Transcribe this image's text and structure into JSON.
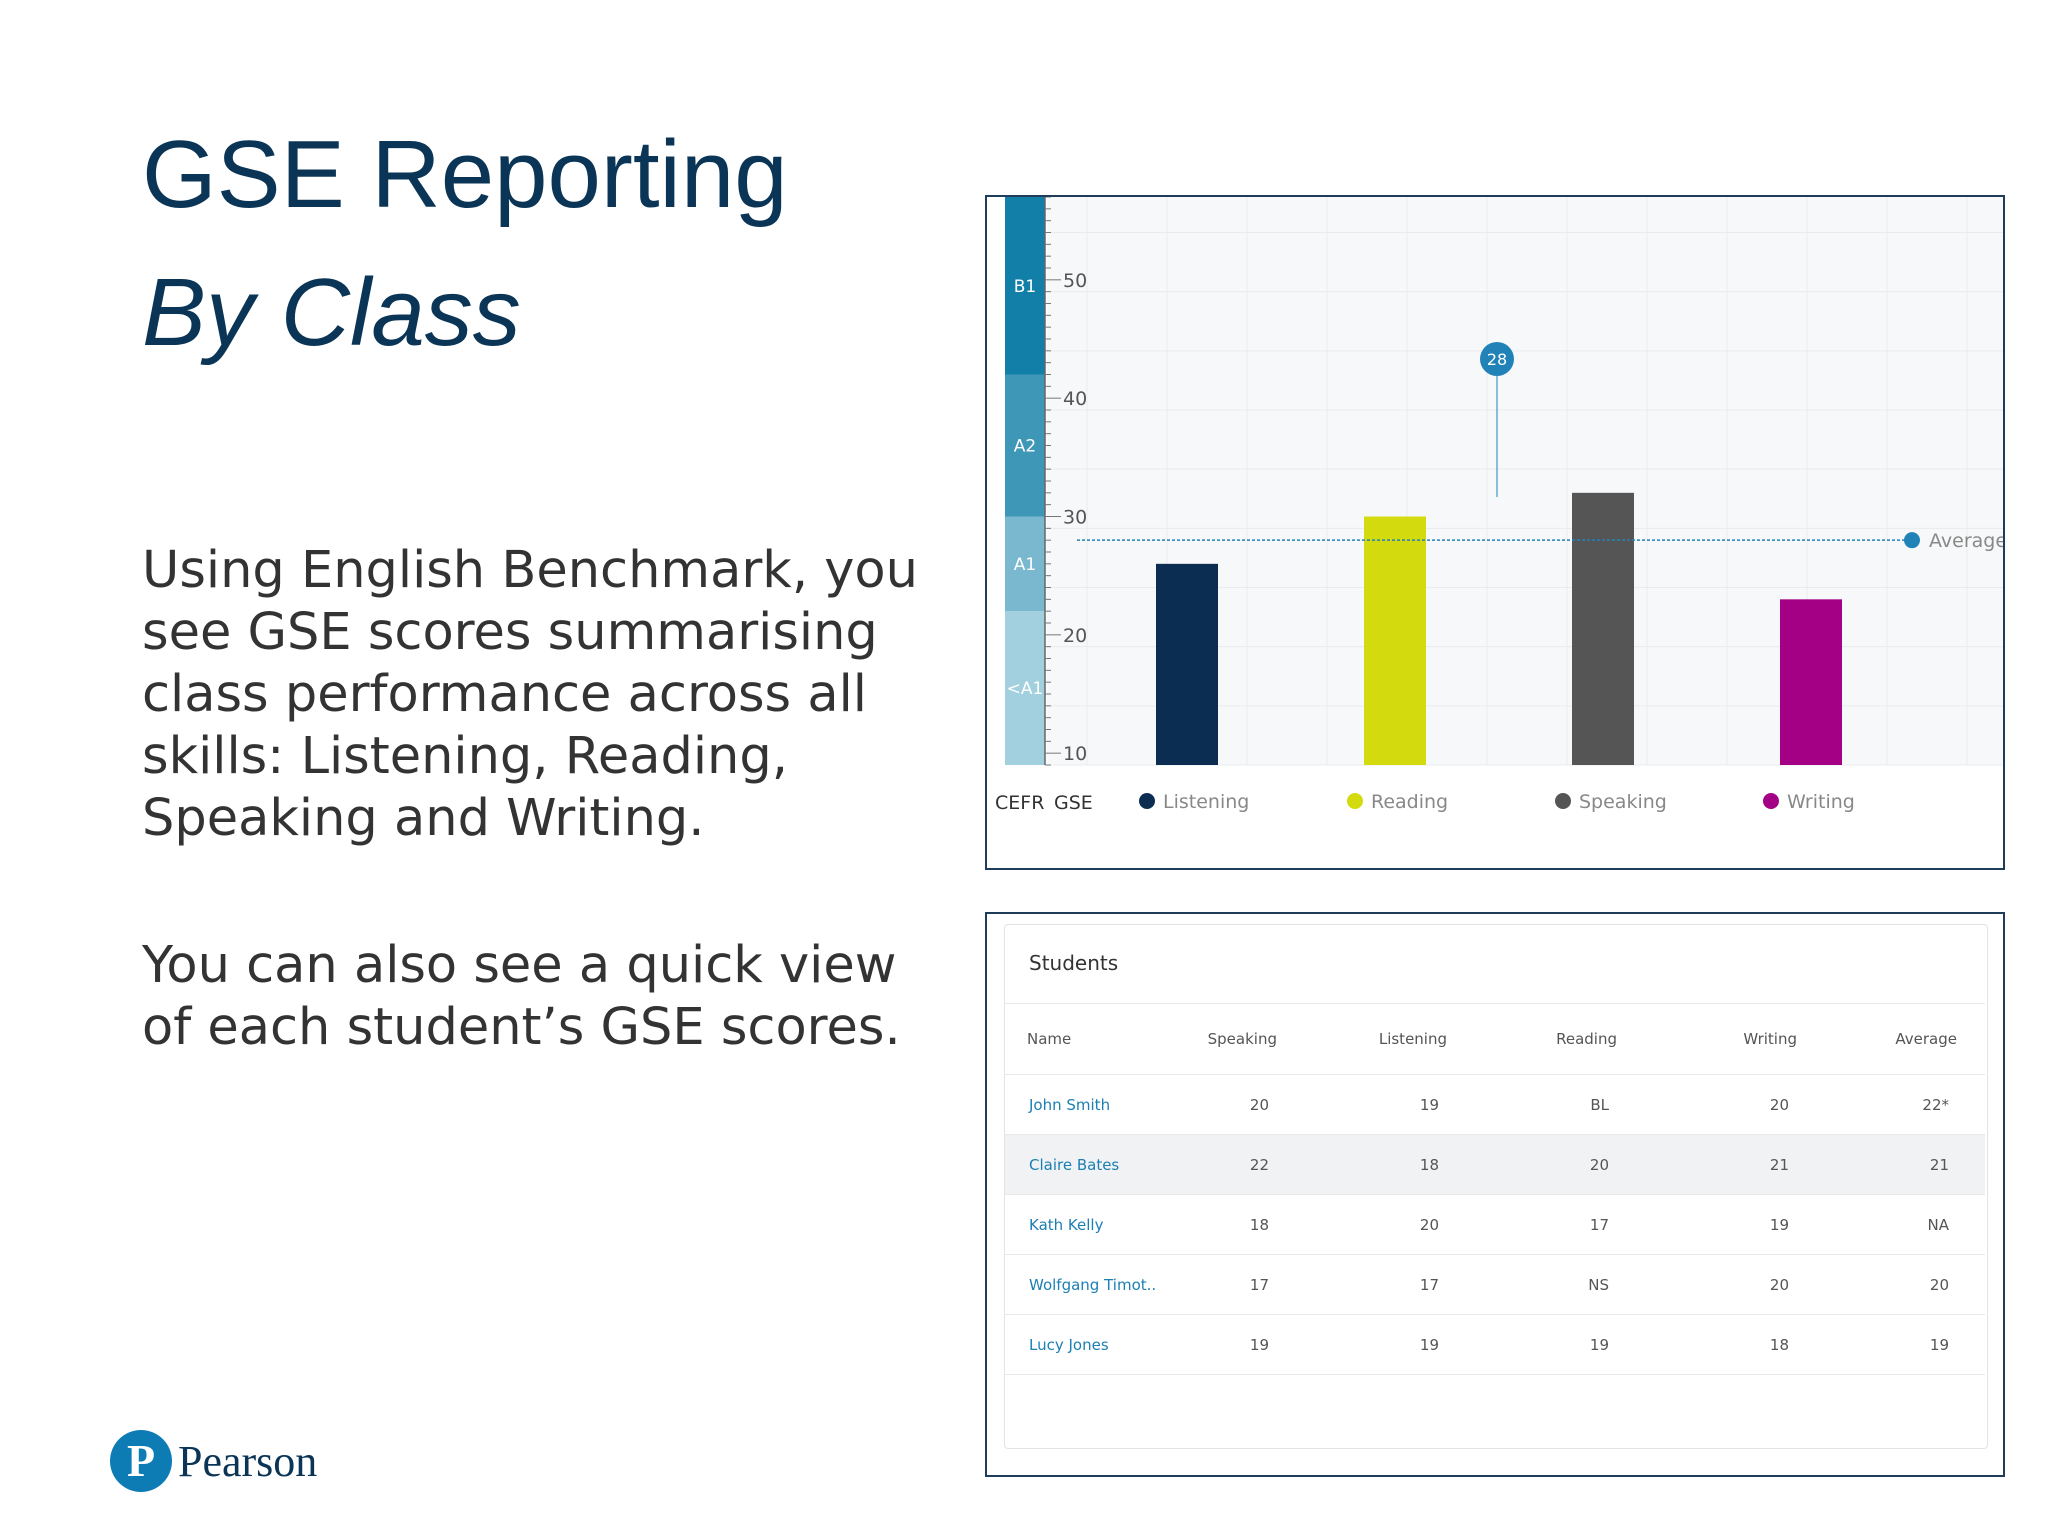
{
  "slide": {
    "title": "GSE Reporting",
    "subtitle": "By Class",
    "paragraph1": "Using English Benchmark, you see GSE scores summarising class performance across all skills:  Listening, Reading, Speaking and Writing.",
    "paragraph2": "You can also see a quick view of each student’s GSE scores.",
    "logo_text": "Pearson",
    "logo_mark": "P"
  },
  "chart_data": {
    "type": "bar",
    "categories": [
      "Listening",
      "Reading",
      "Speaking",
      "Writing"
    ],
    "values": [
      26,
      30,
      32,
      23
    ],
    "colors": [
      "#0c2d52",
      "#d3da0e",
      "#555555",
      "#a30085"
    ],
    "yticks": [
      10,
      20,
      30,
      40,
      50
    ],
    "ylim": [
      9,
      57
    ],
    "cefr_bands": [
      {
        "label": "<A1",
        "from": 9,
        "to": 22,
        "color": "#a3d0de"
      },
      {
        "label": "A1",
        "from": 22,
        "to": 30,
        "color": "#7ab8cf"
      },
      {
        "label": "A2",
        "from": 30,
        "to": 42,
        "color": "#3e97b7"
      },
      {
        "label": "B1",
        "from": 42,
        "to": 57,
        "color": "#127fa8"
      }
    ],
    "average": {
      "value": 28,
      "label": "Average",
      "marker": "28",
      "color": "#2182b8"
    },
    "axis_labels": {
      "cefr": "CEFR",
      "gse": "GSE"
    },
    "grid": true,
    "legend_position": "bottom"
  },
  "table": {
    "title": "Students",
    "columns": [
      "Name",
      "Speaking",
      "Listening",
      "Reading",
      "Writing",
      "Average"
    ],
    "rows": [
      [
        "John Smith",
        "20",
        "19",
        "BL",
        "20",
        "22*"
      ],
      [
        "Claire Bates",
        "22",
        "18",
        "20",
        "21",
        "21"
      ],
      [
        "Kath Kelly",
        "18",
        "20",
        "17",
        "19",
        "NA"
      ],
      [
        "Wolfgang Timot...",
        "17",
        "17",
        "NS",
        "20",
        "20"
      ],
      [
        "Lucy Jones",
        "19",
        "19",
        "19",
        "18",
        "19"
      ]
    ]
  }
}
